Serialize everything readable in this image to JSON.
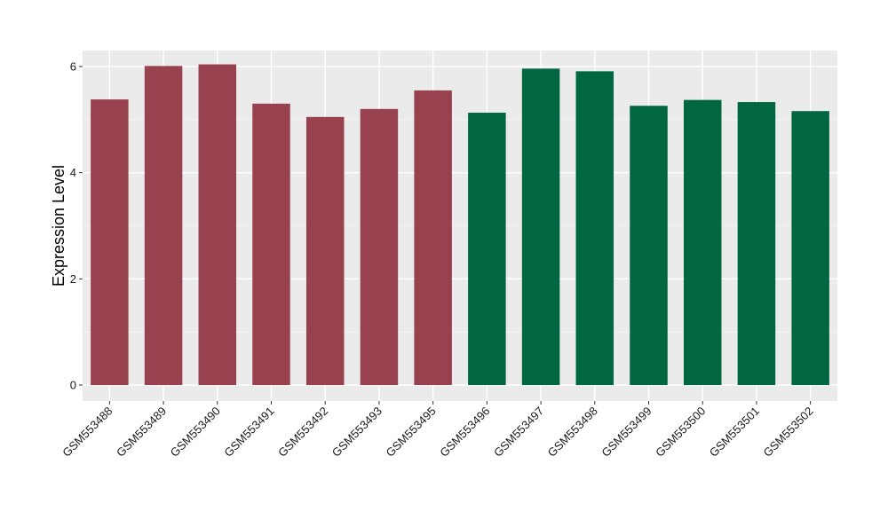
{
  "chart_data": {
    "type": "bar",
    "title": "",
    "xlabel": "",
    "ylabel": "Expression Level",
    "categories": [
      "GSM553488",
      "GSM553489",
      "GSM553490",
      "GSM553491",
      "GSM553492",
      "GSM553493",
      "GSM553495",
      "GSM553496",
      "GSM553497",
      "GSM553498",
      "GSM553499",
      "GSM553500",
      "GSM553501",
      "GSM553502"
    ],
    "values": [
      5.38,
      6.01,
      6.04,
      5.3,
      5.05,
      5.2,
      5.55,
      5.13,
      5.96,
      5.91,
      5.26,
      5.37,
      5.33,
      5.16
    ],
    "bar_colors": [
      "#99424f",
      "#99424f",
      "#99424f",
      "#99424f",
      "#99424f",
      "#99424f",
      "#99424f",
      "#006741",
      "#006741",
      "#006741",
      "#006741",
      "#006741",
      "#006741",
      "#006741"
    ],
    "ylim": [
      -0.3,
      6.3
    ],
    "yticks": [
      0,
      2,
      4,
      6
    ],
    "grid": true,
    "panel_background": "#ebebeb",
    "legend": "none"
  }
}
